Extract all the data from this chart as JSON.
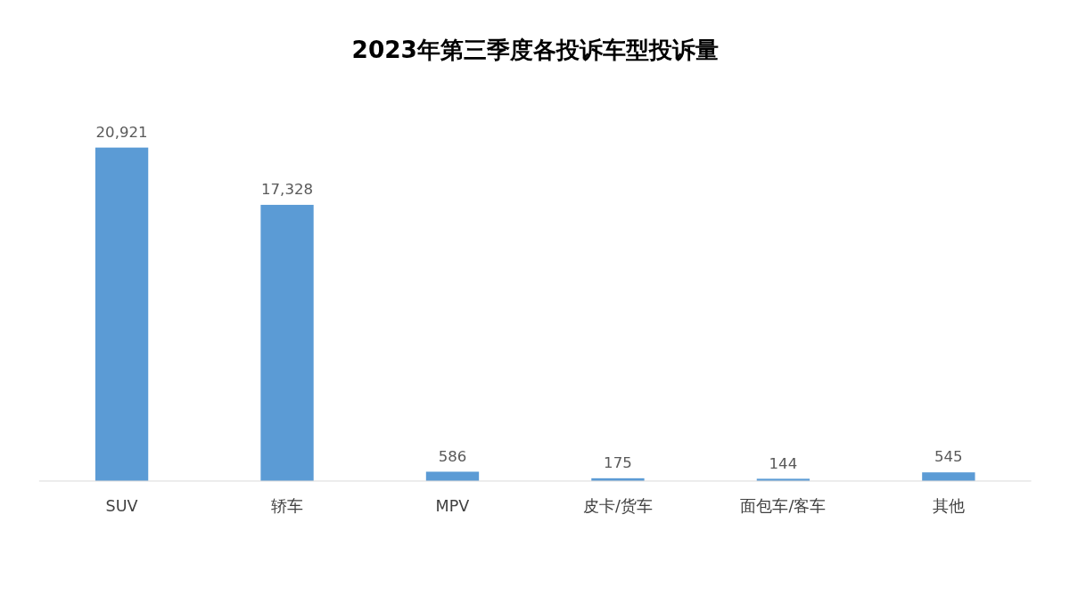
{
  "chart_data": {
    "type": "bar",
    "title": "2023年第三季度各投诉车型投诉量",
    "categories": [
      "SUV",
      "轿车",
      "MPV",
      "皮卡/货车",
      "面包车/客车",
      "其他"
    ],
    "values": [
      20921,
      17328,
      586,
      175,
      144,
      545
    ],
    "value_labels": [
      "20,921",
      "17,328",
      "586",
      "175",
      "144",
      "545"
    ],
    "color": "#5b9bd5"
  }
}
